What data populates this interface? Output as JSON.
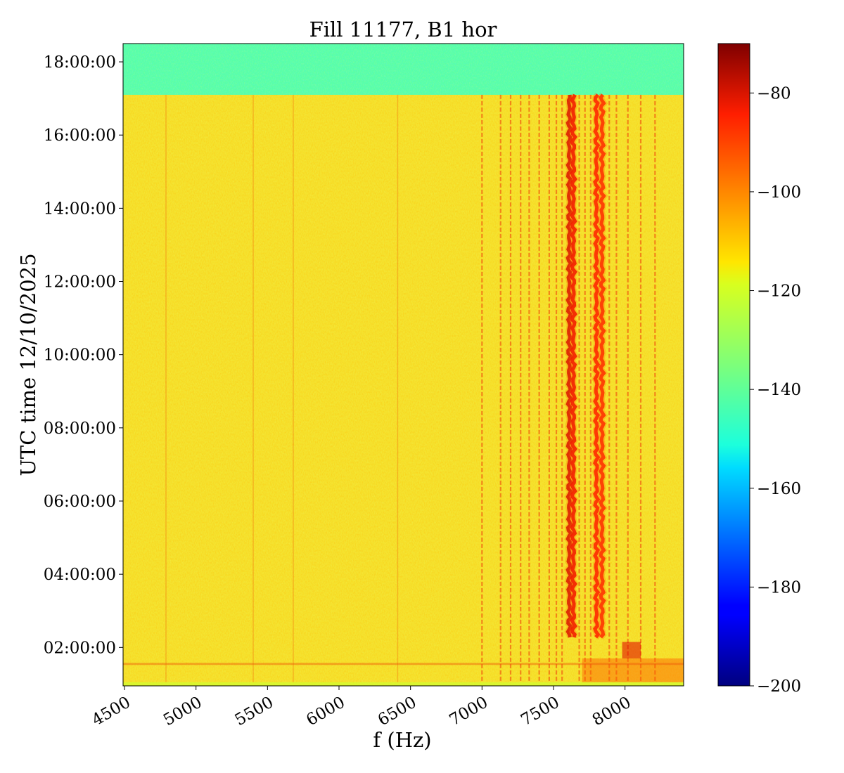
{
  "chart_data": {
    "type": "heatmap",
    "title": "Fill 11177, B1 hor",
    "xlabel": "f (Hz)",
    "ylabel": "UTC time 12/10/2025",
    "xlim": [
      4490,
      8410
    ],
    "ylim_hours": [
      0.95,
      18.5
    ],
    "x_ticks": [
      4500,
      5000,
      5500,
      6000,
      6500,
      7000,
      7500,
      8000
    ],
    "x_tick_labels": [
      "4500",
      "5000",
      "5500",
      "6000",
      "6500",
      "7000",
      "7500",
      "8000"
    ],
    "y_ticks_hours": [
      2,
      4,
      6,
      8,
      10,
      12,
      14,
      16,
      18
    ],
    "y_tick_labels": [
      "02:00:00",
      "04:00:00",
      "06:00:00",
      "08:00:00",
      "10:00:00",
      "12:00:00",
      "14:00:00",
      "16:00:00",
      "18:00:00"
    ],
    "colorbar": {
      "colormap": "jet",
      "range": [
        -200,
        -70
      ],
      "ticks": [
        -80,
        -100,
        -120,
        -140,
        -160,
        -180,
        -200
      ],
      "tick_labels": [
        "−80",
        "−100",
        "−120",
        "−140",
        "−160",
        "−180",
        "−200"
      ]
    },
    "background_level_db": -114,
    "after_dump_level_db": -140,
    "beam_dump_time_hours": 17.1,
    "strong_lines": [
      {
        "freq_hz": 7610,
        "start_hours": 2.2,
        "end_hours": 17.1,
        "level_db": -80
      },
      {
        "freq_hz": 7640,
        "start_hours": 2.2,
        "end_hours": 17.1,
        "level_db": -84
      },
      {
        "freq_hz": 7800,
        "start_hours": 2.2,
        "end_hours": 17.1,
        "level_db": -88
      },
      {
        "freq_hz": 7840,
        "start_hours": 2.2,
        "end_hours": 17.1,
        "level_db": -90
      }
    ],
    "weak_lines_hz": [
      7000,
      7130,
      7200,
      7270,
      7330,
      7400,
      7470,
      7520,
      7560,
      7680,
      7720,
      7760,
      7890,
      7940,
      8020,
      8110,
      8210
    ]
  }
}
